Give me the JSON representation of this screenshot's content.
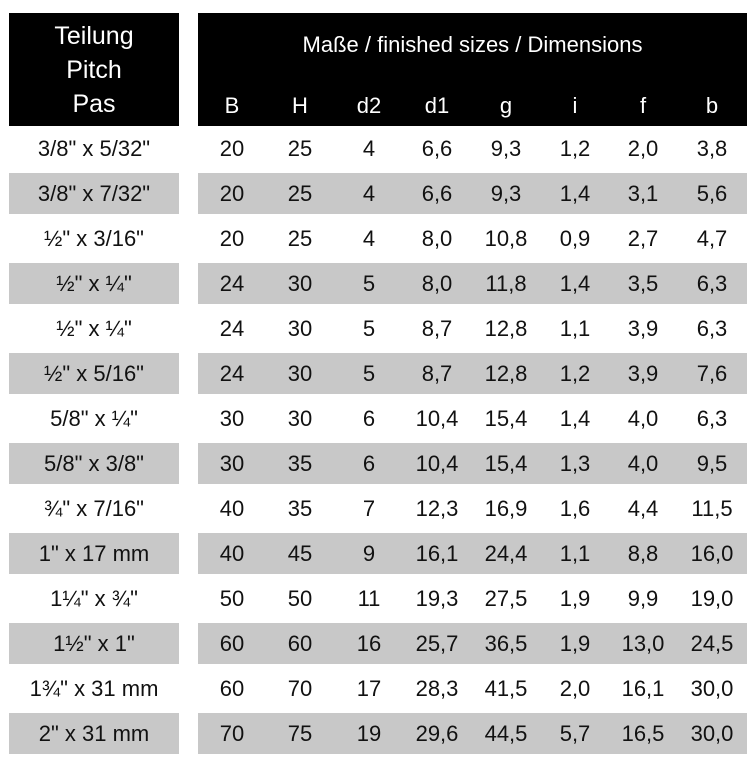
{
  "header": {
    "pitch_lines": [
      "Teilung",
      "Pitch",
      "Pas"
    ],
    "dimensions_title": "Maße / finished sizes / Dimensions",
    "columns": [
      "B",
      "H",
      "d2",
      "d1",
      "g",
      "i",
      "f",
      "b"
    ]
  },
  "rows": [
    {
      "pitch": "3/8\" x 5/32\"",
      "values": [
        "20",
        "25",
        "4",
        "6,6",
        "9,3",
        "1,2",
        "2,0",
        "3,8"
      ]
    },
    {
      "pitch": "3/8\" x 7/32\"",
      "values": [
        "20",
        "25",
        "4",
        "6,6",
        "9,3",
        "1,4",
        "3,1",
        "5,6"
      ]
    },
    {
      "pitch": "½\" x 3/16\"",
      "values": [
        "20",
        "25",
        "4",
        "8,0",
        "10,8",
        "0,9",
        "2,7",
        "4,7"
      ]
    },
    {
      "pitch": "½\" x ¼\"",
      "values": [
        "24",
        "30",
        "5",
        "8,0",
        "11,8",
        "1,4",
        "3,5",
        "6,3"
      ]
    },
    {
      "pitch": "½\" x ¼\"",
      "values": [
        "24",
        "30",
        "5",
        "8,7",
        "12,8",
        "1,1",
        "3,9",
        "6,3"
      ]
    },
    {
      "pitch": "½\" x 5/16\"",
      "values": [
        "24",
        "30",
        "5",
        "8,7",
        "12,8",
        "1,2",
        "3,9",
        "7,6"
      ]
    },
    {
      "pitch": "5/8\" x ¼\"",
      "values": [
        "30",
        "30",
        "6",
        "10,4",
        "15,4",
        "1,4",
        "4,0",
        "6,3"
      ]
    },
    {
      "pitch": "5/8\" x 3/8\"",
      "values": [
        "30",
        "35",
        "6",
        "10,4",
        "15,4",
        "1,3",
        "4,0",
        "9,5"
      ]
    },
    {
      "pitch": "¾\" x 7/16\"",
      "values": [
        "40",
        "35",
        "7",
        "12,3",
        "16,9",
        "1,6",
        "4,4",
        "11,5"
      ]
    },
    {
      "pitch": "1\" x 17 mm",
      "values": [
        "40",
        "45",
        "9",
        "16,1",
        "24,4",
        "1,1",
        "8,8",
        "16,0"
      ]
    },
    {
      "pitch": "1¼\" x ¾\"",
      "values": [
        "50",
        "50",
        "11",
        "19,3",
        "27,5",
        "1,9",
        "9,9",
        "19,0"
      ]
    },
    {
      "pitch": "1½\" x 1\"",
      "values": [
        "60",
        "60",
        "16",
        "25,7",
        "36,5",
        "1,9",
        "13,0",
        "24,5"
      ]
    },
    {
      "pitch": "1¾\" x 31 mm",
      "values": [
        "60",
        "70",
        "17",
        "28,3",
        "41,5",
        "2,0",
        "16,1",
        "30,0"
      ]
    },
    {
      "pitch": "2\" x 31 mm",
      "values": [
        "70",
        "75",
        "19",
        "29,6",
        "44,5",
        "5,7",
        "16,5",
        "30,0"
      ]
    }
  ]
}
